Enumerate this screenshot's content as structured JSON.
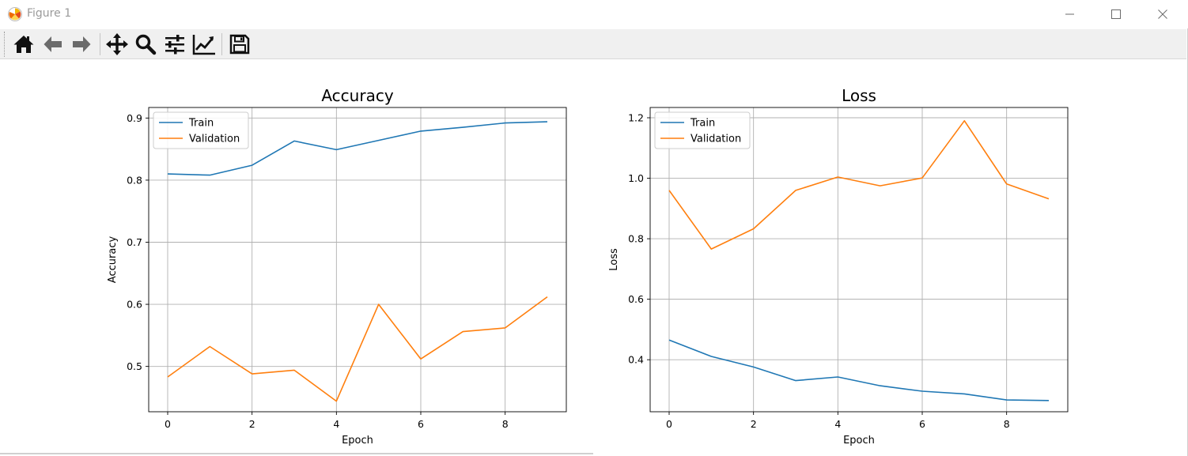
{
  "window": {
    "title": "Figure 1"
  },
  "toolbar": {
    "buttons": [
      {
        "name": "home-button",
        "icon": "home-icon"
      },
      {
        "name": "back-button",
        "icon": "arrow-left-icon"
      },
      {
        "name": "forward-button",
        "icon": "arrow-right-icon"
      },
      {
        "name": "pan-button",
        "icon": "move-icon"
      },
      {
        "name": "zoom-button",
        "icon": "magnifier-icon"
      },
      {
        "name": "subplots-button",
        "icon": "sliders-icon"
      },
      {
        "name": "edit-axes-button",
        "icon": "line-chart-icon"
      },
      {
        "name": "save-button",
        "icon": "floppy-disk-icon"
      }
    ]
  },
  "colors": {
    "train": "#1f77b4",
    "validation": "#ff7f0e",
    "grid": "#b0b0b0"
  },
  "chart_data": [
    {
      "type": "line",
      "title": "Accuracy",
      "xlabel": "Epoch",
      "ylabel": "Accuracy",
      "x": [
        0,
        1,
        2,
        3,
        4,
        5,
        6,
        7,
        8,
        9
      ],
      "xlim": [
        -0.45,
        9.45
      ],
      "ylim": [
        0.427,
        0.917
      ],
      "xticks": [
        0,
        2,
        4,
        6,
        8
      ],
      "yticks": [
        0.5,
        0.6,
        0.7,
        0.8,
        0.9
      ],
      "ytick_labels": [
        "0.5",
        "0.6",
        "0.7",
        "0.8",
        "0.9"
      ],
      "grid": true,
      "legend": "upper left",
      "series": [
        {
          "name": "Train",
          "color": "#1f77b4",
          "values": [
            0.81,
            0.808,
            0.824,
            0.863,
            0.849,
            0.864,
            0.879,
            0.885,
            0.892,
            0.894
          ]
        },
        {
          "name": "Validation",
          "color": "#ff7f0e",
          "values": [
            0.483,
            0.532,
            0.488,
            0.494,
            0.444,
            0.6,
            0.512,
            0.556,
            0.562,
            0.612
          ]
        }
      ]
    },
    {
      "type": "line",
      "title": "Loss",
      "xlabel": "Epoch",
      "ylabel": "Loss",
      "x": [
        0,
        1,
        2,
        3,
        4,
        5,
        6,
        7,
        8,
        9
      ],
      "xlim": [
        -0.45,
        9.45
      ],
      "ylim": [
        0.228,
        1.234
      ],
      "xticks": [
        0,
        2,
        4,
        6,
        8
      ],
      "yticks": [
        0.4,
        0.6,
        0.8,
        1.0,
        1.2
      ],
      "ytick_labels": [
        "0.4",
        "0.6",
        "0.8",
        "1.0",
        "1.2"
      ],
      "grid": true,
      "legend": "upper left",
      "series": [
        {
          "name": "Train",
          "color": "#1f77b4",
          "values": [
            0.465,
            0.411,
            0.376,
            0.331,
            0.343,
            0.314,
            0.296,
            0.287,
            0.267,
            0.265
          ]
        },
        {
          "name": "Validation",
          "color": "#ff7f0e",
          "values": [
            0.96,
            0.766,
            0.833,
            0.96,
            1.004,
            0.975,
            1.001,
            1.19,
            0.981,
            0.932
          ]
        }
      ]
    }
  ]
}
